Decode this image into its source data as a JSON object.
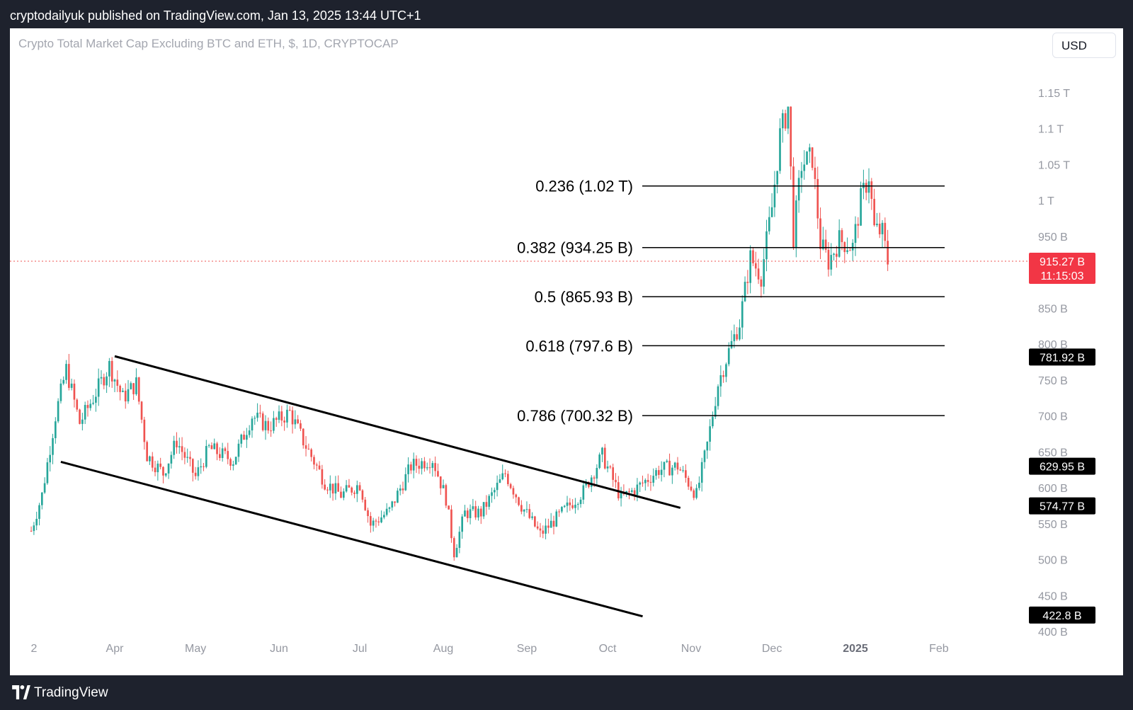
{
  "header": {
    "published_text": "cryptodailyuk published on TradingView.com, Jan 13, 2025 13:44 UTC+1"
  },
  "footer": {
    "brand": "TradingView",
    "logo_icon": "tradingview-logo-icon"
  },
  "toolbar": {
    "currency_label": "USD"
  },
  "colors": {
    "up": "#26a69a",
    "down": "#ef5350",
    "current_price_bg": "#f23645",
    "label_bg": "#000000",
    "axis_text": "#9598a1",
    "fib_line": "#000000",
    "trendline": "#000000"
  },
  "chart_data": {
    "type": "candlestick",
    "title": "Crypto Total Market Cap Excluding BTC and ETH, $, 1D, CRYPTOCAP",
    "units": "USD, billions",
    "x_ticks": [
      "2",
      "Apr",
      "May",
      "Jun",
      "Jul",
      "Aug",
      "Sep",
      "Oct",
      "Nov",
      "Dec",
      "2025",
      "Feb"
    ],
    "y_ticks": [
      "400 B",
      "450 B",
      "500 B",
      "550 B",
      "600 B",
      "650 B",
      "700 B",
      "750 B",
      "800 B",
      "850 B",
      "950 B",
      "1 T",
      "1.05 T",
      "1.1 T",
      "1.15 T"
    ],
    "ylim": [
      400,
      1200
    ],
    "grid": false,
    "current_price": {
      "value": 915.27,
      "label": "915.27 B",
      "countdown": "11:15:03"
    },
    "price_labels": [
      {
        "value": 781.92,
        "label": "781.92 B"
      },
      {
        "value": 629.95,
        "label": "629.95 B"
      },
      {
        "value": 574.77,
        "label": "574.77 B"
      },
      {
        "value": 422.8,
        "label": "422.8 B"
      }
    ],
    "fibonacci_levels": [
      {
        "ratio": 0.236,
        "value": 1020,
        "label": "0.236 (1.02 T)"
      },
      {
        "ratio": 0.382,
        "value": 934.25,
        "label": "0.382 (934.25 B)"
      },
      {
        "ratio": 0.5,
        "value": 865.93,
        "label": "0.5 (865.93 B)"
      },
      {
        "ratio": 0.618,
        "value": 797.6,
        "label": "0.618 (797.6 B)"
      },
      {
        "ratio": 0.786,
        "value": 700.32,
        "label": "0.786 (700.32 B)"
      }
    ],
    "trendlines": [
      {
        "name": "channel-upper",
        "from": {
          "date": "2024-04-01",
          "value": 783
        },
        "to": {
          "date": "2024-10-28",
          "value": 572
        }
      },
      {
        "name": "channel-lower",
        "from": {
          "date": "2024-03-12",
          "value": 636
        },
        "to": {
          "date": "2024-10-14",
          "value": 421
        }
      }
    ],
    "price_path": [
      {
        "date": "2024-03-01",
        "value": 540
      },
      {
        "date": "2024-03-05",
        "value": 590
      },
      {
        "date": "2024-03-10",
        "value": 700
      },
      {
        "date": "2024-03-14",
        "value": 765
      },
      {
        "date": "2024-03-19",
        "value": 690
      },
      {
        "date": "2024-03-24",
        "value": 725
      },
      {
        "date": "2024-03-30",
        "value": 770
      },
      {
        "date": "2024-04-04",
        "value": 725
      },
      {
        "date": "2024-04-09",
        "value": 745
      },
      {
        "date": "2024-04-13",
        "value": 645
      },
      {
        "date": "2024-04-19",
        "value": 620
      },
      {
        "date": "2024-04-24",
        "value": 665
      },
      {
        "date": "2024-05-01",
        "value": 615
      },
      {
        "date": "2024-05-06",
        "value": 655
      },
      {
        "date": "2024-05-15",
        "value": 638
      },
      {
        "date": "2024-05-22",
        "value": 700
      },
      {
        "date": "2024-05-28",
        "value": 685
      },
      {
        "date": "2024-06-05",
        "value": 705
      },
      {
        "date": "2024-06-10",
        "value": 665
      },
      {
        "date": "2024-06-18",
        "value": 608
      },
      {
        "date": "2024-06-24",
        "value": 590
      },
      {
        "date": "2024-07-01",
        "value": 605
      },
      {
        "date": "2024-07-05",
        "value": 548
      },
      {
        "date": "2024-07-12",
        "value": 568
      },
      {
        "date": "2024-07-20",
        "value": 630
      },
      {
        "date": "2024-07-28",
        "value": 640
      },
      {
        "date": "2024-08-02",
        "value": 585
      },
      {
        "date": "2024-08-05",
        "value": 510
      },
      {
        "date": "2024-08-09",
        "value": 565
      },
      {
        "date": "2024-08-15",
        "value": 565
      },
      {
        "date": "2024-08-24",
        "value": 620
      },
      {
        "date": "2024-08-30",
        "value": 575
      },
      {
        "date": "2024-09-06",
        "value": 535
      },
      {
        "date": "2024-09-14",
        "value": 565
      },
      {
        "date": "2024-09-22",
        "value": 595
      },
      {
        "date": "2024-09-29",
        "value": 645
      },
      {
        "date": "2024-10-06",
        "value": 585
      },
      {
        "date": "2024-10-12",
        "value": 600
      },
      {
        "date": "2024-10-20",
        "value": 625
      },
      {
        "date": "2024-10-27",
        "value": 630
      },
      {
        "date": "2024-11-03",
        "value": 590
      },
      {
        "date": "2024-11-07",
        "value": 660
      },
      {
        "date": "2024-11-11",
        "value": 745
      },
      {
        "date": "2024-11-15",
        "value": 790
      },
      {
        "date": "2024-11-19",
        "value": 830
      },
      {
        "date": "2024-11-23",
        "value": 920
      },
      {
        "date": "2024-11-27",
        "value": 895
      },
      {
        "date": "2024-12-01",
        "value": 990
      },
      {
        "date": "2024-12-04",
        "value": 1090
      },
      {
        "date": "2024-12-07",
        "value": 1130
      },
      {
        "date": "2024-12-09",
        "value": 950
      },
      {
        "date": "2024-12-12",
        "value": 1050
      },
      {
        "date": "2024-12-16",
        "value": 1060
      },
      {
        "date": "2024-12-19",
        "value": 940
      },
      {
        "date": "2024-12-22",
        "value": 915
      },
      {
        "date": "2024-12-26",
        "value": 945
      },
      {
        "date": "2024-12-31",
        "value": 935
      },
      {
        "date": "2025-01-03",
        "value": 1000
      },
      {
        "date": "2025-01-06",
        "value": 1035
      },
      {
        "date": "2025-01-08",
        "value": 960
      },
      {
        "date": "2025-01-11",
        "value": 955
      },
      {
        "date": "2025-01-13",
        "value": 915
      }
    ]
  }
}
